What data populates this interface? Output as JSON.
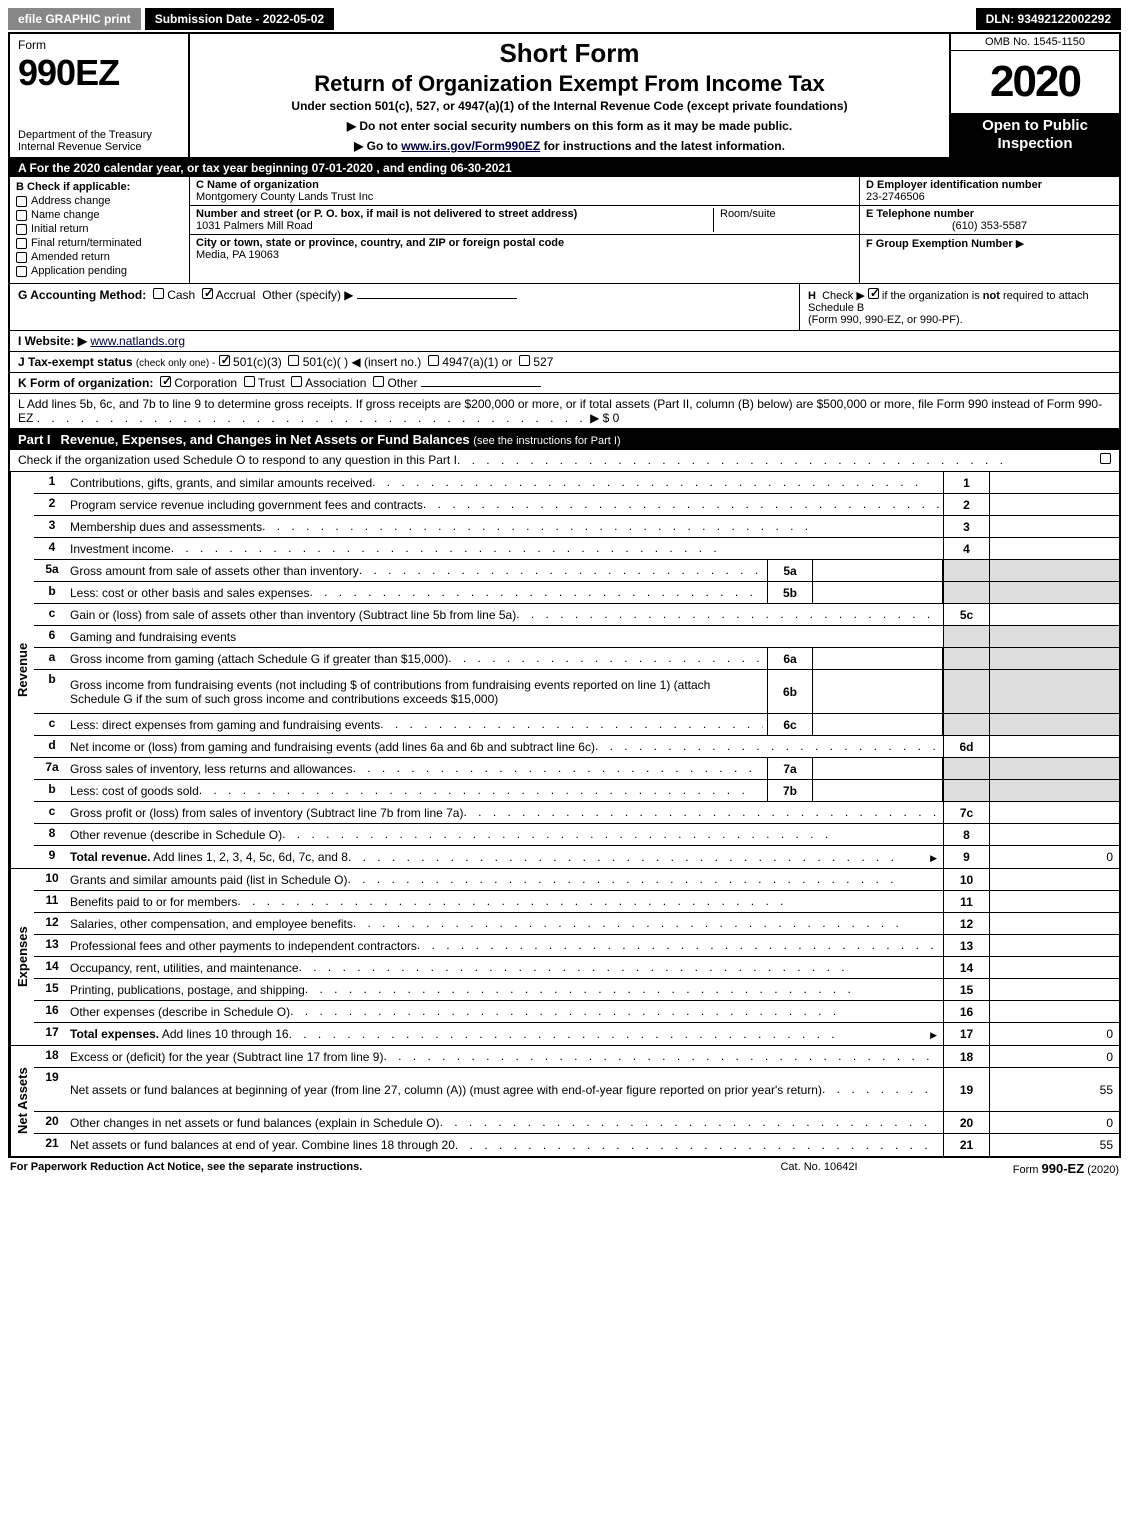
{
  "topbar": {
    "efile": "efile GRAPHIC print",
    "submission": "Submission Date - 2022-05-02",
    "dln": "DLN: 93492122002292"
  },
  "header": {
    "form_word": "Form",
    "form_number": "990EZ",
    "dept1": "Department of the Treasury",
    "dept2": "Internal Revenue Service",
    "short_form": "Short Form",
    "return_title": "Return of Organization Exempt From Income Tax",
    "under_section": "Under section 501(c), 527, or 4947(a)(1) of the Internal Revenue Code (except private foundations)",
    "instr1": "▶ Do not enter social security numbers on this form as it may be made public.",
    "instr2_pre": "▶ Go to ",
    "instr2_link": "www.irs.gov/Form990EZ",
    "instr2_post": " for instructions and the latest information.",
    "omb": "OMB No. 1545-1150",
    "year": "2020",
    "open_public": "Open to Public Inspection"
  },
  "row_a": "A For the 2020 calendar year, or tax year beginning 07-01-2020 , and ending 06-30-2021",
  "col_b": {
    "header": "B  Check if applicable:",
    "items": [
      "Address change",
      "Name change",
      "Initial return",
      "Final return/terminated",
      "Amended return",
      "Application pending"
    ]
  },
  "col_c": {
    "name_label": "C Name of organization",
    "name_value": "Montgomery County Lands Trust Inc",
    "street_label": "Number and street (or P. O. box, if mail is not delivered to street address)",
    "street_value": "1031 Palmers Mill Road",
    "room_label": "Room/suite",
    "city_label": "City or town, state or province, country, and ZIP or foreign postal code",
    "city_value": "Media, PA  19063"
  },
  "col_d": {
    "d_label": "D Employer identification number",
    "d_value": "23-2746506",
    "e_label": "E Telephone number",
    "e_value": "(610) 353-5587",
    "f_label": "F Group Exemption Number",
    "f_arrow": "▶"
  },
  "row_g": {
    "label": "G Accounting Method:",
    "cash": "Cash",
    "accrual": "Accrual",
    "other": "Other (specify) ▶"
  },
  "row_h": {
    "label": "H",
    "text1": "Check ▶",
    "text2": "if the organization is ",
    "not": "not",
    "text3": " required to attach Schedule B",
    "text4": "(Form 990, 990-EZ, or 990-PF)."
  },
  "row_i": {
    "label": "I Website: ▶",
    "value": "www.natlands.org"
  },
  "row_j": {
    "label": "J Tax-exempt status",
    "sub": "(check only one) -",
    "opt1": "501(c)(3)",
    "opt2": "501(c)(   ) ◀ (insert no.)",
    "opt3": "4947(a)(1) or",
    "opt4": "527"
  },
  "row_k": {
    "label": "K Form of organization:",
    "opts": [
      "Corporation",
      "Trust",
      "Association",
      "Other"
    ]
  },
  "row_l": {
    "text": "L Add lines 5b, 6c, and 7b to line 9 to determine gross receipts. If gross receipts are $200,000 or more, or if total assets (Part II, column (B) below) are $500,000 or more, file Form 990 instead of Form 990-EZ",
    "amount_label": "▶ $ 0"
  },
  "part1": {
    "tag": "Part I",
    "title": "Revenue, Expenses, and Changes in Net Assets or Fund Balances",
    "sub": "(see the instructions for Part I)",
    "check_line": "Check if the organization used Schedule O to respond to any question in this Part I",
    "check_end": "▢"
  },
  "revenue_lines": [
    {
      "n": "1",
      "desc": "Contributions, gifts, grants, and similar amounts received",
      "rt": "1",
      "val": ""
    },
    {
      "n": "2",
      "desc": "Program service revenue including government fees and contracts",
      "rt": "2",
      "val": ""
    },
    {
      "n": "3",
      "desc": "Membership dues and assessments",
      "rt": "3",
      "val": ""
    },
    {
      "n": "4",
      "desc": "Investment income",
      "rt": "4",
      "val": ""
    },
    {
      "n": "5a",
      "desc": "Gross amount from sale of assets other than inventory",
      "mid": "5a",
      "midval": "",
      "shade": true
    },
    {
      "n": "b",
      "desc": "Less: cost or other basis and sales expenses",
      "mid": "5b",
      "midval": "",
      "shade": true
    },
    {
      "n": "c",
      "desc": "Gain or (loss) from sale of assets other than inventory (Subtract line 5b from line 5a)",
      "rt": "5c",
      "val": ""
    },
    {
      "n": "6",
      "desc": "Gaming and fundraising events",
      "shade_all": true
    },
    {
      "n": "a",
      "desc": "Gross income from gaming (attach Schedule G if greater than $15,000)",
      "mid": "6a",
      "midval": "",
      "shade": true
    },
    {
      "n": "b",
      "desc": "Gross income from fundraising events (not including $                       of contributions from fundraising events reported on line 1) (attach Schedule G if the sum of such gross income and contributions exceeds $15,000)",
      "mid": "6b",
      "midval": "",
      "shade": true,
      "tall": true
    },
    {
      "n": "c",
      "desc": "Less: direct expenses from gaming and fundraising events",
      "mid": "6c",
      "midval": "",
      "shade": true
    },
    {
      "n": "d",
      "desc": "Net income or (loss) from gaming and fundraising events (add lines 6a and 6b and subtract line 6c)",
      "rt": "6d",
      "val": ""
    },
    {
      "n": "7a",
      "desc": "Gross sales of inventory, less returns and allowances",
      "mid": "7a",
      "midval": "",
      "shade": true
    },
    {
      "n": "b",
      "desc": "Less: cost of goods sold",
      "mid": "7b",
      "midval": "",
      "shade": true
    },
    {
      "n": "c",
      "desc": "Gross profit or (loss) from sales of inventory (Subtract line 7b from line 7a)",
      "rt": "7c",
      "val": ""
    },
    {
      "n": "8",
      "desc": "Other revenue (describe in Schedule O)",
      "rt": "8",
      "val": ""
    },
    {
      "n": "9",
      "desc": "Total revenue. Add lines 1, 2, 3, 4, 5c, 6d, 7c, and 8",
      "rt": "9",
      "val": "0",
      "bold": true,
      "arrow": true
    }
  ],
  "expense_lines": [
    {
      "n": "10",
      "desc": "Grants and similar amounts paid (list in Schedule O)",
      "rt": "10",
      "val": ""
    },
    {
      "n": "11",
      "desc": "Benefits paid to or for members",
      "rt": "11",
      "val": ""
    },
    {
      "n": "12",
      "desc": "Salaries, other compensation, and employee benefits",
      "rt": "12",
      "val": ""
    },
    {
      "n": "13",
      "desc": "Professional fees and other payments to independent contractors",
      "rt": "13",
      "val": ""
    },
    {
      "n": "14",
      "desc": "Occupancy, rent, utilities, and maintenance",
      "rt": "14",
      "val": ""
    },
    {
      "n": "15",
      "desc": "Printing, publications, postage, and shipping",
      "rt": "15",
      "val": ""
    },
    {
      "n": "16",
      "desc": "Other expenses (describe in Schedule O)",
      "rt": "16",
      "val": ""
    },
    {
      "n": "17",
      "desc": "Total expenses. Add lines 10 through 16",
      "rt": "17",
      "val": "0",
      "bold": true,
      "arrow": true
    }
  ],
  "netassets_lines": [
    {
      "n": "18",
      "desc": "Excess or (deficit) for the year (Subtract line 17 from line 9)",
      "rt": "18",
      "val": "0"
    },
    {
      "n": "19",
      "desc": "Net assets or fund balances at beginning of year (from line 27, column (A)) (must agree with end-of-year figure reported on prior year's return)",
      "rt": "19",
      "val": "55",
      "tall": true
    },
    {
      "n": "20",
      "desc": "Other changes in net assets or fund balances (explain in Schedule O)",
      "rt": "20",
      "val": "0"
    },
    {
      "n": "21",
      "desc": "Net assets or fund balances at end of year. Combine lines 18 through 20",
      "rt": "21",
      "val": "55"
    }
  ],
  "side_labels": {
    "revenue": "Revenue",
    "expenses": "Expenses",
    "netassets": "Net Assets"
  },
  "footer": {
    "left": "For Paperwork Reduction Act Notice, see the separate instructions.",
    "mid": "Cat. No. 10642I",
    "right_pre": "Form ",
    "right_bold": "990-EZ",
    "right_post": " (2020)"
  }
}
